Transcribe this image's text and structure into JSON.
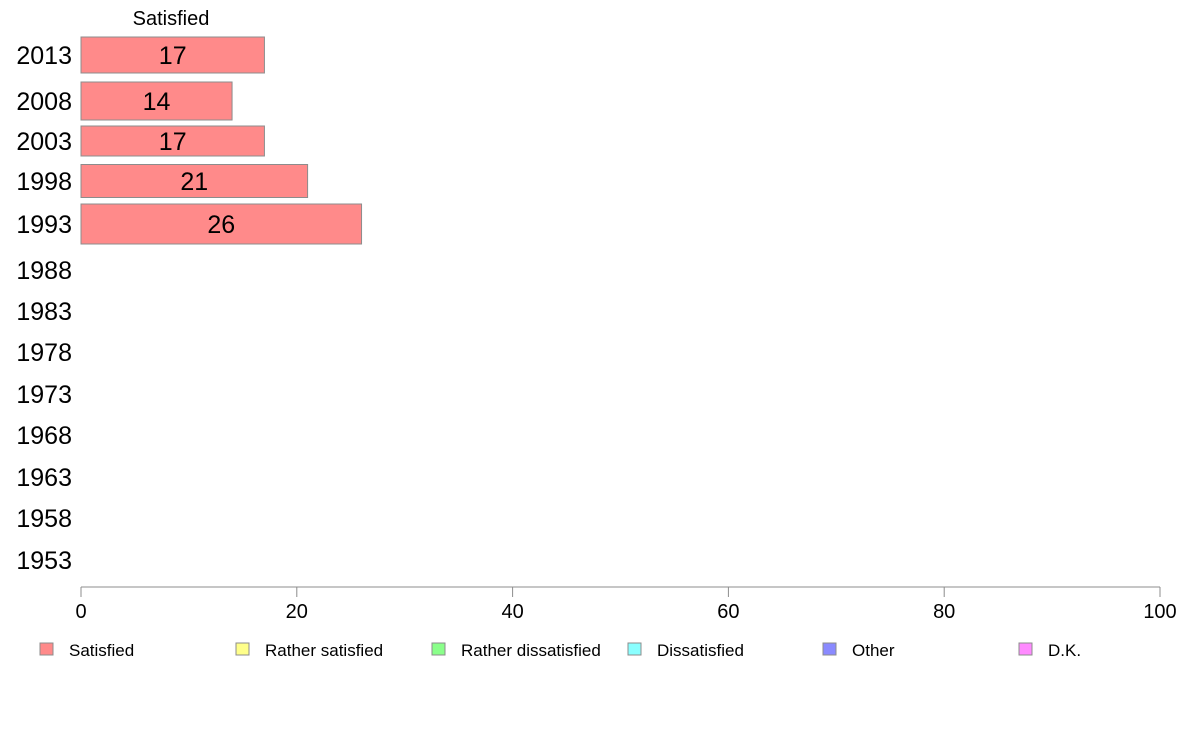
{
  "chart_data": {
    "type": "bar",
    "orientation": "horizontal",
    "column_title": "Satisfied",
    "categories": [
      "2013",
      "2008",
      "2003",
      "1998",
      "1993",
      "1988",
      "1983",
      "1978",
      "1973",
      "1968",
      "1963",
      "1958",
      "1953"
    ],
    "series": [
      {
        "name": "Satisfied",
        "color": "#ff8a8a",
        "values": [
          17,
          14,
          17,
          21,
          26,
          null,
          null,
          null,
          null,
          null,
          null,
          null,
          null
        ]
      }
    ],
    "value_labels": [
      "17",
      "14",
      "17",
      "21",
      "26"
    ],
    "xlim": [
      0,
      100
    ],
    "xticks": [
      "0",
      "20",
      "40",
      "60",
      "80",
      "100"
    ],
    "grid": false,
    "legend_position": "bottom",
    "legend": [
      {
        "label": "Satisfied",
        "color": "#ff8a8a"
      },
      {
        "label": "Rather satisfied",
        "color": "#ffff8a"
      },
      {
        "label": "Rather dissatisfied",
        "color": "#8aff8a"
      },
      {
        "label": "Dissatisfied",
        "color": "#8affff"
      },
      {
        "label": "Other",
        "color": "#8a8aff"
      },
      {
        "label": "D.K.",
        "color": "#ff8aff"
      }
    ]
  }
}
